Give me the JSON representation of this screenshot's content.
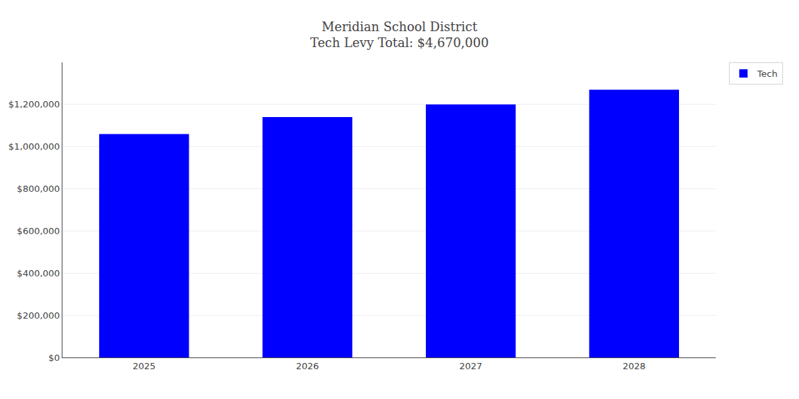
{
  "chart_data": {
    "type": "bar",
    "title": "Meridian School District",
    "subtitle": "Tech Levy Total: $4,670,000",
    "categories": [
      "2025",
      "2026",
      "2027",
      "2028"
    ],
    "series": [
      {
        "name": "Tech",
        "color": "#0000FF",
        "values": [
          1060000,
          1140000,
          1200000,
          1270000
        ]
      }
    ],
    "ylim": [
      0,
      1400000
    ],
    "yticks": [
      {
        "value": 0,
        "label": "$0"
      },
      {
        "value": 200000,
        "label": "$200,000"
      },
      {
        "value": 400000,
        "label": "$400,000"
      },
      {
        "value": 600000,
        "label": "$600,000"
      },
      {
        "value": 800000,
        "label": "$800,000"
      },
      {
        "value": 1000000,
        "label": "$1,000,000"
      },
      {
        "value": 1200000,
        "label": "$1,200,000"
      }
    ],
    "grid": true,
    "legend": "right"
  }
}
